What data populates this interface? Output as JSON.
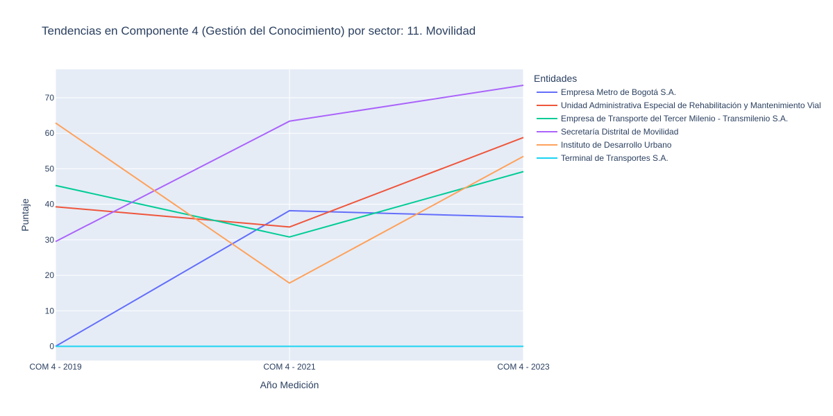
{
  "chart_data": {
    "type": "line",
    "title": "Tendencias en Componente 4 (Gestión del Conocimiento) por sector: 11. Movilidad",
    "xlabel": "Año Medición",
    "ylabel": "Puntaje",
    "categories": [
      "COM 4 - 2019",
      "COM 4 - 2021",
      "COM 4 - 2023"
    ],
    "ylim": [
      -4,
      78
    ],
    "yticks": [
      0,
      10,
      20,
      30,
      40,
      50,
      60,
      70
    ],
    "grid": true,
    "legend_title": "Entidades",
    "legend_position": "right",
    "series": [
      {
        "name": "Empresa Metro de Bogotá S.A.",
        "color": "#636efa",
        "values": [
          0,
          38.2,
          36.4
        ]
      },
      {
        "name": "Unidad Administrativa Especial de Rehabilitación y Mantenimiento Vial",
        "color": "#EF553B",
        "values": [
          39.3,
          33.6,
          58.8
        ]
      },
      {
        "name": "Empresa de Transporte del Tercer Milenio - Transmilenio S.A.",
        "color": "#00cc96",
        "values": [
          45.3,
          30.8,
          49.2
        ]
      },
      {
        "name": "Secretaría Distrital de Movilidad",
        "color": "#ab63fa",
        "values": [
          29.5,
          63.4,
          73.5
        ]
      },
      {
        "name": "Instituto de Desarrollo Urbano",
        "color": "#FFA15A",
        "values": [
          62.9,
          17.8,
          53.5
        ]
      },
      {
        "name": "Terminal de Transportes S.A.",
        "color": "#19d3f3",
        "values": [
          0,
          0,
          0
        ]
      }
    ]
  }
}
